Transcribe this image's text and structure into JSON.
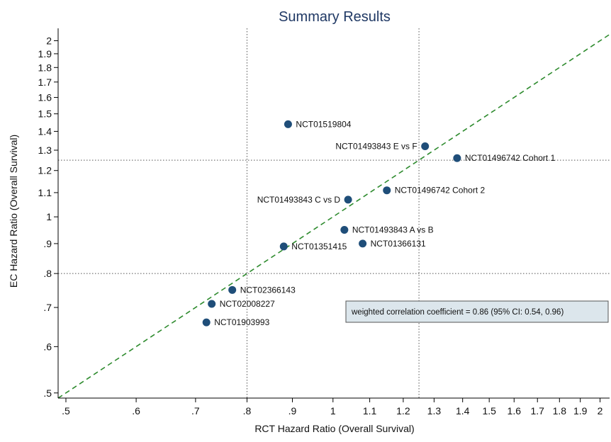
{
  "chart_data": {
    "type": "scatter",
    "title": "Summary Results",
    "xlabel": "RCT Hazard Ratio (Overall Survival)",
    "ylabel": "EC Hazard Ratio (Overall Survival)",
    "x_scale": "log",
    "y_scale": "log",
    "xlim": [
      0.49,
      2.05
    ],
    "ylim": [
      0.49,
      2.1
    ],
    "x_ticks": [
      0.5,
      0.6,
      0.7,
      0.8,
      0.9,
      1,
      1.1,
      1.2,
      1.3,
      1.4,
      1.5,
      1.6,
      1.7,
      1.8,
      1.9,
      2
    ],
    "x_tick_labels": [
      ".5",
      ".6",
      ".7",
      ".8",
      ".9",
      "1",
      "1.1",
      "1.2",
      "1.3",
      "1.4",
      "1.5",
      "1.6",
      "1.7",
      "1.8",
      "1.9",
      "2"
    ],
    "y_ticks": [
      0.5,
      0.6,
      0.7,
      0.8,
      0.9,
      1,
      1.1,
      1.2,
      1.3,
      1.4,
      1.5,
      1.6,
      1.7,
      1.8,
      1.9,
      2
    ],
    "y_tick_labels": [
      ".5",
      ".6",
      ".7",
      ".8",
      ".9",
      "1",
      "1.1",
      "1.2",
      "1.3",
      "1.4",
      "1.5",
      "1.6",
      "1.7",
      "1.8",
      "1.9",
      "2"
    ],
    "reference_lines": {
      "vertical": [
        0.8,
        1.25
      ],
      "horizontal": [
        0.8,
        1.25
      ],
      "diagonal": "y = x"
    },
    "points": [
      {
        "label": "NCT01519804",
        "x": 0.89,
        "y": 1.44,
        "label_side": "right"
      },
      {
        "label": "NCT01493843 E vs F",
        "x": 1.27,
        "y": 1.32,
        "label_side": "left"
      },
      {
        "label": "NCT01496742 Cohort 1",
        "x": 1.38,
        "y": 1.26,
        "label_side": "right"
      },
      {
        "label": "NCT01496742 Cohort 2",
        "x": 1.15,
        "y": 1.11,
        "label_side": "right"
      },
      {
        "label": "NCT01493843 C vs D",
        "x": 1.04,
        "y": 1.07,
        "label_side": "left"
      },
      {
        "label": "NCT01493843 A vs B",
        "x": 1.03,
        "y": 0.95,
        "label_side": "right"
      },
      {
        "label": "NCT01366131",
        "x": 1.08,
        "y": 0.9,
        "label_side": "right"
      },
      {
        "label": "NCT01351415",
        "x": 0.88,
        "y": 0.89,
        "label_side": "right"
      },
      {
        "label": "NCT02366143",
        "x": 0.77,
        "y": 0.75,
        "label_side": "right"
      },
      {
        "label": "NCT02008227",
        "x": 0.73,
        "y": 0.71,
        "label_side": "right"
      },
      {
        "label": "NCT01903993",
        "x": 0.72,
        "y": 0.66,
        "label_side": "right"
      }
    ],
    "annotation": "weighted correlation coefficient = 0.86 (95% CI: 0.54, 0.96)",
    "grid": false,
    "colors": {
      "point": "#1f4e79",
      "diagonal": "#2e8b2e",
      "reference": "#555555",
      "title": "#1f3864",
      "annotation_bg": "#dce6ec",
      "annotation_border": "#555555",
      "axis": "#000000"
    }
  }
}
